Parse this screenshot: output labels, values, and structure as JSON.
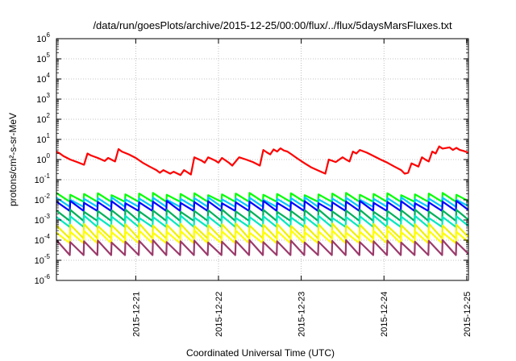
{
  "chart_data": {
    "type": "line",
    "title": "/data/run/goesPlots/archive/2015-12-25/00:00/flux/../flux/5daysMarsFluxes.txt",
    "xlabel": "Coordinated Universal Time (UTC)",
    "ylabel": "protons/cm²-s-sr-MeV",
    "y_scale": "log",
    "ylim": [
      1e-06,
      1000000.0
    ],
    "y_ticks": [
      {
        "base": "10",
        "exp": "-6",
        "value": 1e-06
      },
      {
        "base": "10",
        "exp": "-5",
        "value": 1e-05
      },
      {
        "base": "10",
        "exp": "-4",
        "value": 0.0001
      },
      {
        "base": "10",
        "exp": "-3",
        "value": 0.001
      },
      {
        "base": "10",
        "exp": "-2",
        "value": 0.01
      },
      {
        "base": "10",
        "exp": "-1",
        "value": 0.1
      },
      {
        "base": "10",
        "exp": "0",
        "value": 1
      },
      {
        "base": "10",
        "exp": "1",
        "value": 10
      },
      {
        "base": "10",
        "exp": "2",
        "value": 100
      },
      {
        "base": "10",
        "exp": "3",
        "value": 1000
      },
      {
        "base": "10",
        "exp": "4",
        "value": 10000
      },
      {
        "base": "10",
        "exp": "5",
        "value": 100000
      },
      {
        "base": "10",
        "exp": "6",
        "value": 1000000
      }
    ],
    "xlim": [
      "2015-12-20 01:00",
      "2015-12-25 00:30"
    ],
    "x_ticks": [
      "2015-12-21",
      "2015-12-22",
      "2015-12-23",
      "2015-12-24",
      "2015-12-25"
    ],
    "grid": true,
    "legend": "none",
    "series": [
      {
        "color": "#ff0000",
        "kind": "sawtooth-irregular",
        "points": [
          [
            "2015-12-20 01:00",
            2.5
          ],
          [
            "2015-12-20 02:00",
            2.0
          ],
          [
            "2015-12-20 03:00",
            1.5
          ],
          [
            "2015-12-20 05:00",
            1.0
          ],
          [
            "2015-12-20 07:00",
            0.75
          ],
          [
            "2015-12-20 09:00",
            0.55
          ],
          [
            "2015-12-20 10:00",
            2.0
          ],
          [
            "2015-12-20 11:00",
            1.6
          ],
          [
            "2015-12-20 13:00",
            1.2
          ],
          [
            "2015-12-20 15:00",
            0.85
          ],
          [
            "2015-12-20 16:00",
            1.2
          ],
          [
            "2015-12-20 18:00",
            0.8
          ],
          [
            "2015-12-20 19:00",
            3.3
          ],
          [
            "2015-12-20 20:00",
            2.5
          ],
          [
            "2015-12-20 22:00",
            1.8
          ],
          [
            "2015-12-21 00:00",
            1.2
          ],
          [
            "2015-12-21 02:00",
            0.7
          ],
          [
            "2015-12-21 04:00",
            0.45
          ],
          [
            "2015-12-21 06:00",
            0.3
          ],
          [
            "2015-12-21 07:00",
            0.22
          ],
          [
            "2015-12-21 08:00",
            0.3
          ],
          [
            "2015-12-21 10:00",
            0.2
          ],
          [
            "2015-12-21 11:00",
            0.25
          ],
          [
            "2015-12-21 13:00",
            0.17
          ],
          [
            "2015-12-21 14:00",
            0.3
          ],
          [
            "2015-12-21 16:00",
            0.18
          ],
          [
            "2015-12-21 17:00",
            1.3
          ],
          [
            "2015-12-21 19:00",
            0.9
          ],
          [
            "2015-12-21 20:00",
            0.7
          ],
          [
            "2015-12-21 21:00",
            1.3
          ],
          [
            "2015-12-21 23:00",
            0.9
          ],
          [
            "2015-12-22 00:00",
            0.7
          ],
          [
            "2015-12-22 01:00",
            1.2
          ],
          [
            "2015-12-22 03:00",
            0.7
          ],
          [
            "2015-12-22 04:00",
            0.5
          ],
          [
            "2015-12-22 06:00",
            1.3
          ],
          [
            "2015-12-22 08:00",
            1.0
          ],
          [
            "2015-12-22 10:00",
            0.75
          ],
          [
            "2015-12-22 12:00",
            0.5
          ],
          [
            "2015-12-22 13:00",
            3.0
          ],
          [
            "2015-12-22 14:00",
            2.3
          ],
          [
            "2015-12-22 15:00",
            1.8
          ],
          [
            "2015-12-22 16:00",
            3.2
          ],
          [
            "2015-12-22 17:00",
            2.5
          ],
          [
            "2015-12-22 18:00",
            3.6
          ],
          [
            "2015-12-22 19:00",
            2.8
          ],
          [
            "2015-12-22 20:00",
            2.5
          ],
          [
            "2015-12-22 21:00",
            1.9
          ],
          [
            "2015-12-22 23:00",
            1.1
          ],
          [
            "2015-12-23 01:00",
            0.65
          ],
          [
            "2015-12-23 03:00",
            0.4
          ],
          [
            "2015-12-23 05:00",
            0.28
          ],
          [
            "2015-12-23 07:00",
            0.2
          ],
          [
            "2015-12-23 08:00",
            1.0
          ],
          [
            "2015-12-23 10:00",
            0.75
          ],
          [
            "2015-12-23 12:00",
            1.3
          ],
          [
            "2015-12-23 13:00",
            1.0
          ],
          [
            "2015-12-23 14:00",
            0.8
          ],
          [
            "2015-12-23 15:00",
            2.5
          ],
          [
            "2015-12-23 16:00",
            2.0
          ],
          [
            "2015-12-23 17:00",
            3.0
          ],
          [
            "2015-12-23 19:00",
            2.2
          ],
          [
            "2015-12-23 21:00",
            1.5
          ],
          [
            "2015-12-23 23:00",
            1.0
          ],
          [
            "2015-12-24 01:00",
            0.7
          ],
          [
            "2015-12-24 03:00",
            0.45
          ],
          [
            "2015-12-24 05:00",
            0.3
          ],
          [
            "2015-12-24 06:00",
            0.2
          ],
          [
            "2015-12-24 07:00",
            0.22
          ],
          [
            "2015-12-24 08:00",
            0.65
          ],
          [
            "2015-12-24 10:00",
            0.45
          ],
          [
            "2015-12-24 11:00",
            1.3
          ],
          [
            "2015-12-24 12:00",
            1.0
          ],
          [
            "2015-12-24 13:00",
            0.8
          ],
          [
            "2015-12-24 14:00",
            2.5
          ],
          [
            "2015-12-24 15:00",
            2.0
          ],
          [
            "2015-12-24 16:00",
            4.5
          ],
          [
            "2015-12-24 17:00",
            3.5
          ],
          [
            "2015-12-24 19:00",
            4.0
          ],
          [
            "2015-12-24 20:00",
            3.0
          ],
          [
            "2015-12-24 21:00",
            3.8
          ],
          [
            "2015-12-24 22:00",
            3.0
          ],
          [
            "2015-12-24 23:00",
            2.7
          ],
          [
            "2015-12-25 00:30",
            2.2
          ]
        ]
      },
      {
        "color": "#00ff00",
        "kind": "periodic-sawtooth",
        "period_hours": 4,
        "peak": 0.02,
        "trough": 0.008
      },
      {
        "color": "#00c8ff",
        "kind": "periodic-sawtooth",
        "period_hours": 4,
        "peak": 0.012,
        "trough": 0.0045
      },
      {
        "color": "#0000ff",
        "kind": "periodic-sawtooth",
        "period_hours": 4,
        "peak": 0.008,
        "trough": 0.0028
      },
      {
        "color": "#00b05a",
        "kind": "periodic-sawtooth",
        "period_hours": 4,
        "peak": 0.003,
        "trough": 0.0009
      },
      {
        "color": "#00e8c0",
        "kind": "periodic-sawtooth",
        "period_hours": 4,
        "peak": 0.0015,
        "trough": 0.00045
      },
      {
        "color": "#f0f000",
        "kind": "periodic-sawtooth",
        "period_hours": 4,
        "peak": 0.0006,
        "trough": 0.00012
      },
      {
        "color": "#ffff00",
        "kind": "periodic-sawtooth",
        "period_hours": 4,
        "peak": 0.00028,
        "trough": 7e-05
      },
      {
        "color": "#9b3a6b",
        "kind": "periodic-sawtooth",
        "period_hours": 4,
        "peak": 9e-05,
        "trough": 1.8e-05
      }
    ]
  }
}
